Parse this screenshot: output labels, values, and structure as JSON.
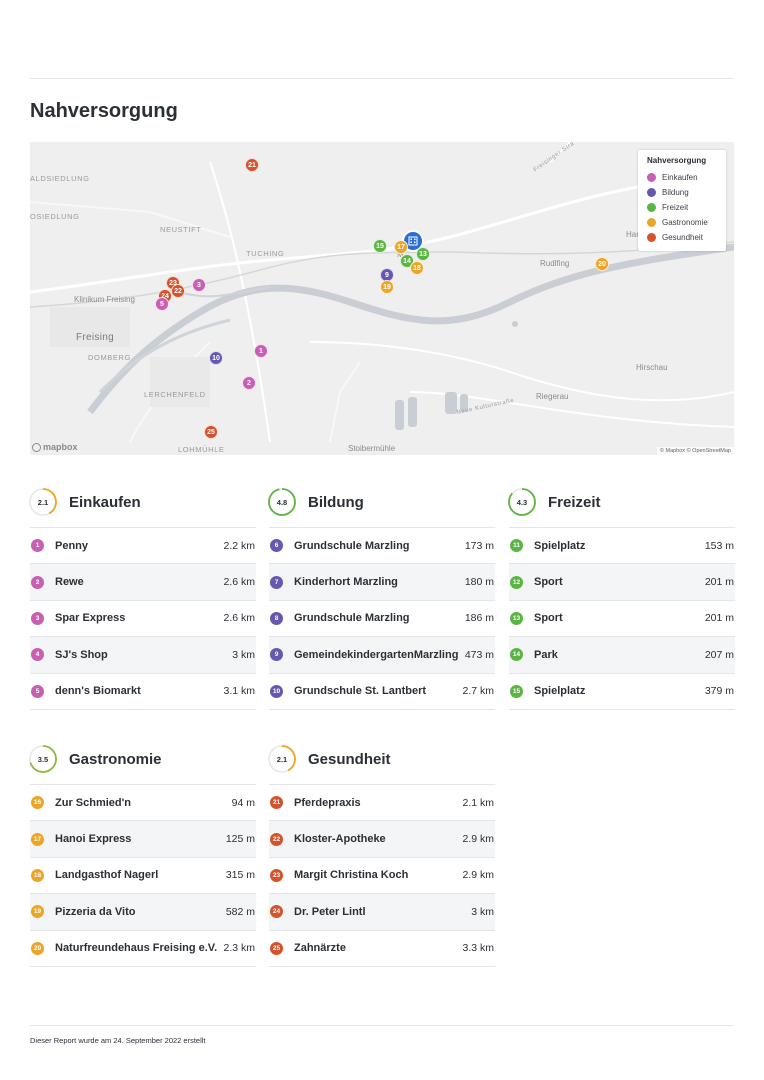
{
  "title": "Nahversorgung",
  "colors": {
    "einkaufen": "#c95fb2",
    "bildung": "#6658b0",
    "freizeit": "#5bb543",
    "gastronomie": "#eca524",
    "gesundheit": "#d5532c",
    "home": "#2b6fd6"
  },
  "map": {
    "places": {
      "aldsiedlung": "ALDSIEDLUNG",
      "osiedlung": "OSIEDLUNG",
      "neustift": "NEUSTIFT",
      "tuching": "TUCHING",
      "klinikum": "Klinikum Freising",
      "freising": "Freising",
      "domberg": "DOMBERG",
      "lerchenfeld": "LERCHENFELD",
      "lohmuehle": "LOHMÜHLE",
      "rudlfing": "Rudlfing",
      "hirschau": "Hirschau",
      "riegerau": "Riegerau",
      "stoibermuehle": "Stoibermühle",
      "freisinger_str": "Freisinger Stra",
      "neue_kulturstr": "Neue Kulturstraße",
      "har": "Har",
      "marzling_abbr": "M"
    },
    "legend": {
      "title": "Nahversorgung",
      "items": [
        {
          "label": "Einkaufen",
          "color": "#c95fb2"
        },
        {
          "label": "Bildung",
          "color": "#6658b0"
        },
        {
          "label": "Freizeit",
          "color": "#5bb543"
        },
        {
          "label": "Gastronomie",
          "color": "#eca524"
        },
        {
          "label": "Gesundheit",
          "color": "#d5532c"
        }
      ]
    },
    "logo": "mapbox",
    "attribution": "© Mapbox © OpenStreetMap",
    "markers": {
      "m1": "1",
      "m2": "2",
      "m3": "3",
      "m5": "5",
      "m9": "9",
      "m10": "10",
      "m13": "13",
      "m14": "14",
      "m15": "15",
      "m17": "17",
      "m18": "18",
      "m19": "19",
      "m20": "20",
      "m21": "21",
      "m22": "22",
      "m23": "23",
      "m24": "24",
      "m25": "25"
    }
  },
  "categories": {
    "einkaufen": {
      "title": "Einkaufen",
      "score": "2.1",
      "score_fraction": 0.42,
      "items": [
        {
          "num": "1",
          "name": "Penny",
          "dist": "2.2 km"
        },
        {
          "num": "2",
          "name": "Rewe",
          "dist": "2.6 km"
        },
        {
          "num": "3",
          "name": "Spar Express",
          "dist": "2.6 km"
        },
        {
          "num": "4",
          "name": "SJ's Shop",
          "dist": "3 km"
        },
        {
          "num": "5",
          "name": "denn's Biomarkt",
          "dist": "3.1 km"
        }
      ]
    },
    "bildung": {
      "title": "Bildung",
      "score": "4.8",
      "score_fraction": 0.96,
      "items": [
        {
          "num": "6",
          "name": "Grundschule Marzling",
          "dist": "173 m"
        },
        {
          "num": "7",
          "name": "Kinderhort Marzling",
          "dist": "180 m"
        },
        {
          "num": "8",
          "name": "Grundschule Marzling",
          "dist": "186 m"
        },
        {
          "num": "9",
          "name": "GemeindekindergartenMarzling",
          "dist": "473 m"
        },
        {
          "num": "10",
          "name": "Grundschule St. Lantbert",
          "dist": "2.7 km"
        }
      ]
    },
    "freizeit": {
      "title": "Freizeit",
      "score": "4.3",
      "score_fraction": 0.86,
      "items": [
        {
          "num": "11",
          "name": "Spielplatz",
          "dist": "153 m"
        },
        {
          "num": "12",
          "name": "Sport",
          "dist": "201 m"
        },
        {
          "num": "13",
          "name": "Sport",
          "dist": "201 m"
        },
        {
          "num": "14",
          "name": "Park",
          "dist": "207 m"
        },
        {
          "num": "15",
          "name": "Spielplatz",
          "dist": "379 m"
        }
      ]
    },
    "gastronomie": {
      "title": "Gastronomie",
      "score": "3.5",
      "score_fraction": 0.7,
      "items": [
        {
          "num": "16",
          "name": "Zur Schmied'n",
          "dist": "94 m"
        },
        {
          "num": "17",
          "name": "Hanoi Express",
          "dist": "125 m"
        },
        {
          "num": "18",
          "name": "Landgasthof Nagerl",
          "dist": "315 m"
        },
        {
          "num": "19",
          "name": "Pizzeria da Vito",
          "dist": "582 m"
        },
        {
          "num": "20",
          "name": "Naturfreundehaus Freising e.V.",
          "dist": "2.3 km"
        }
      ]
    },
    "gesundheit": {
      "title": "Gesundheit",
      "score": "2.1",
      "score_fraction": 0.42,
      "items": [
        {
          "num": "21",
          "name": "Pferdepraxis",
          "dist": "2.1 km"
        },
        {
          "num": "22",
          "name": "Kloster-Apotheke",
          "dist": "2.9 km"
        },
        {
          "num": "23",
          "name": "Margit Christina Koch",
          "dist": "2.9 km"
        },
        {
          "num": "24",
          "name": "Dr. Peter Lintl",
          "dist": "3 km"
        },
        {
          "num": "25",
          "name": "Zahnärzte",
          "dist": "3.3 km"
        }
      ]
    }
  },
  "footer": "Dieser Report wurde am 24. September 2022 erstellt"
}
